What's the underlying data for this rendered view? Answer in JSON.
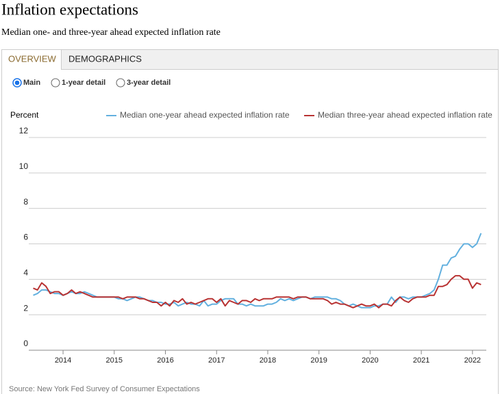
{
  "tabs": [
    "OVERVIEW",
    "DEMOGRAPHICS"
  ],
  "views": [
    "Main",
    "1-year detail",
    "3-year detail"
  ],
  "chart_data": {
    "type": "line",
    "title": "Inflation expectations",
    "subtitle": "Median one- and three-year ahead expected inflation rate",
    "y_label": "Percent",
    "source": "Source: New York Fed Survey of Consumer Expectations",
    "xlim": [
      2013.33,
      2022.27
    ],
    "xticks": [
      2014,
      2015,
      2016,
      2017,
      2018,
      2019,
      2020,
      2021,
      2022
    ],
    "ylim": [
      0,
      12
    ],
    "yticks": [
      0,
      2,
      4,
      6,
      8,
      10,
      12
    ],
    "grid": true,
    "x": [
      2013.417,
      2013.5,
      2013.583,
      2013.667,
      2013.75,
      2013.833,
      2013.917,
      2014,
      2014.083,
      2014.167,
      2014.25,
      2014.333,
      2014.417,
      2014.5,
      2014.583,
      2014.667,
      2014.75,
      2014.833,
      2014.917,
      2015,
      2015.083,
      2015.167,
      2015.25,
      2015.333,
      2015.417,
      2015.5,
      2015.583,
      2015.667,
      2015.75,
      2015.833,
      2015.917,
      2016,
      2016.083,
      2016.167,
      2016.25,
      2016.333,
      2016.417,
      2016.5,
      2016.583,
      2016.667,
      2016.75,
      2016.833,
      2016.917,
      2017,
      2017.083,
      2017.167,
      2017.25,
      2017.333,
      2017.417,
      2017.5,
      2017.583,
      2017.667,
      2017.75,
      2017.833,
      2017.917,
      2018,
      2018.083,
      2018.167,
      2018.25,
      2018.333,
      2018.417,
      2018.5,
      2018.583,
      2018.667,
      2018.75,
      2018.833,
      2018.917,
      2019,
      2019.083,
      2019.167,
      2019.25,
      2019.333,
      2019.417,
      2019.5,
      2019.583,
      2019.667,
      2019.75,
      2019.833,
      2019.917,
      2020,
      2020.083,
      2020.167,
      2020.25,
      2020.333,
      2020.417,
      2020.5,
      2020.583,
      2020.667,
      2020.75,
      2020.833,
      2020.917,
      2021,
      2021.083,
      2021.167,
      2021.25,
      2021.333,
      2021.417,
      2021.5,
      2021.583,
      2021.667,
      2021.75,
      2021.833,
      2021.917,
      2022,
      2022.083,
      2022.167
    ],
    "series": [
      {
        "name": "Median one-year ahead expected inflation rate",
        "color": "#62b0df",
        "values": [
          3.1,
          3.2,
          3.4,
          3.4,
          3.3,
          3.2,
          3.2,
          3.1,
          3.2,
          3.3,
          3.2,
          3.2,
          3.3,
          3.2,
          3.1,
          3.0,
          3.0,
          3.0,
          3.0,
          3.0,
          2.9,
          2.9,
          2.8,
          2.9,
          3.0,
          3.0,
          2.9,
          2.8,
          2.8,
          2.7,
          2.7,
          2.6,
          2.6,
          2.7,
          2.5,
          2.6,
          2.7,
          2.6,
          2.6,
          2.5,
          2.8,
          2.5,
          2.6,
          2.6,
          2.8,
          2.9,
          2.9,
          2.9,
          2.6,
          2.6,
          2.5,
          2.6,
          2.5,
          2.5,
          2.5,
          2.6,
          2.6,
          2.7,
          2.9,
          2.8,
          2.9,
          2.8,
          2.9,
          3.0,
          3.0,
          2.9,
          3.0,
          3.0,
          3.0,
          3.0,
          2.9,
          2.9,
          2.8,
          2.6,
          2.5,
          2.6,
          2.5,
          2.4,
          2.4,
          2.4,
          2.5,
          2.5,
          2.6,
          2.6,
          3.0,
          2.7,
          3.0,
          3.0,
          2.9,
          3.0,
          3.0,
          3.0,
          3.1,
          3.2,
          3.4,
          4.0,
          4.8,
          4.8,
          5.2,
          5.3,
          5.7,
          6.0,
          6.0,
          5.8,
          6.0,
          6.6
        ]
      },
      {
        "name": "Median three-year ahead expected inflation rate",
        "color": "#b83232",
        "values": [
          3.5,
          3.4,
          3.8,
          3.6,
          3.2,
          3.3,
          3.3,
          3.1,
          3.2,
          3.4,
          3.2,
          3.3,
          3.2,
          3.1,
          3.0,
          3.0,
          3.0,
          3.0,
          3.0,
          3.0,
          3.0,
          2.9,
          3.0,
          3.0,
          3.0,
          2.9,
          2.9,
          2.8,
          2.7,
          2.7,
          2.5,
          2.7,
          2.5,
          2.8,
          2.7,
          2.9,
          2.6,
          2.7,
          2.6,
          2.7,
          2.8,
          2.9,
          2.9,
          2.7,
          2.9,
          2.5,
          2.8,
          2.7,
          2.6,
          2.8,
          2.8,
          2.7,
          2.9,
          2.8,
          2.9,
          2.9,
          2.9,
          3.0,
          3.0,
          3.0,
          3.0,
          2.9,
          3.0,
          3.0,
          3.0,
          2.9,
          2.9,
          2.9,
          2.9,
          2.8,
          2.6,
          2.7,
          2.6,
          2.6,
          2.5,
          2.4,
          2.5,
          2.6,
          2.5,
          2.5,
          2.6,
          2.4,
          2.6,
          2.6,
          2.5,
          2.8,
          3.0,
          2.8,
          2.7,
          2.9,
          3.0,
          3.0,
          3.0,
          3.1,
          3.1,
          3.6,
          3.6,
          3.7,
          4.0,
          4.2,
          4.2,
          4.0,
          4.0,
          3.5,
          3.8,
          3.7
        ]
      }
    ]
  }
}
